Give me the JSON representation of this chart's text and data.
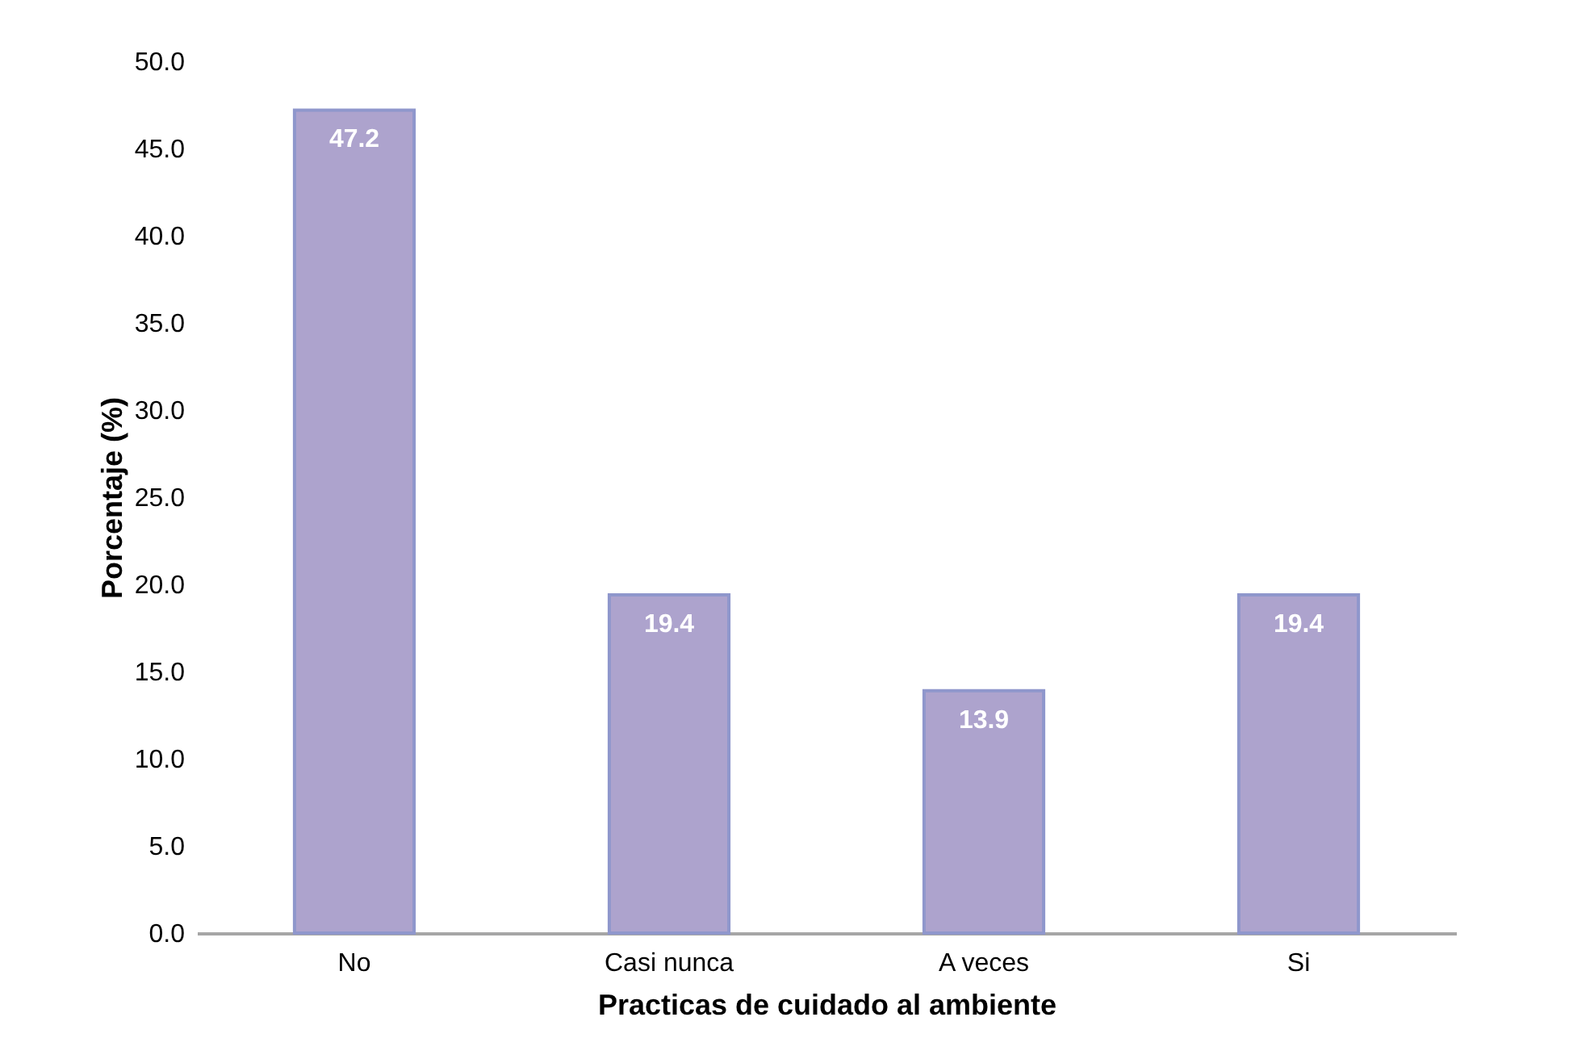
{
  "chart_data": {
    "type": "bar",
    "xlabel": "Practicas de cuidado al ambiente",
    "ylabel": "Porcentaje (%)",
    "categories": [
      "No",
      "Casi nunca",
      "A veces",
      "Si"
    ],
    "values": [
      47.2,
      19.4,
      13.9,
      19.4
    ],
    "color": "#ada3cd",
    "ylim": [
      0,
      50
    ],
    "yticks": [
      {
        "value": 0,
        "label": "0.0"
      },
      {
        "value": 5,
        "label": "5.0"
      },
      {
        "value": 10,
        "label": "10.0"
      },
      {
        "value": 15,
        "label": "15.0"
      },
      {
        "value": 20,
        "label": "20.0"
      },
      {
        "value": 25,
        "label": "25.0"
      },
      {
        "value": 30,
        "label": "30.0"
      },
      {
        "value": 35,
        "label": "35.0"
      },
      {
        "value": 40,
        "label": "40.0"
      },
      {
        "value": 45,
        "label": "45.0"
      },
      {
        "value": 50,
        "label": "50.0"
      }
    ],
    "data_labels": true,
    "grid": false
  }
}
